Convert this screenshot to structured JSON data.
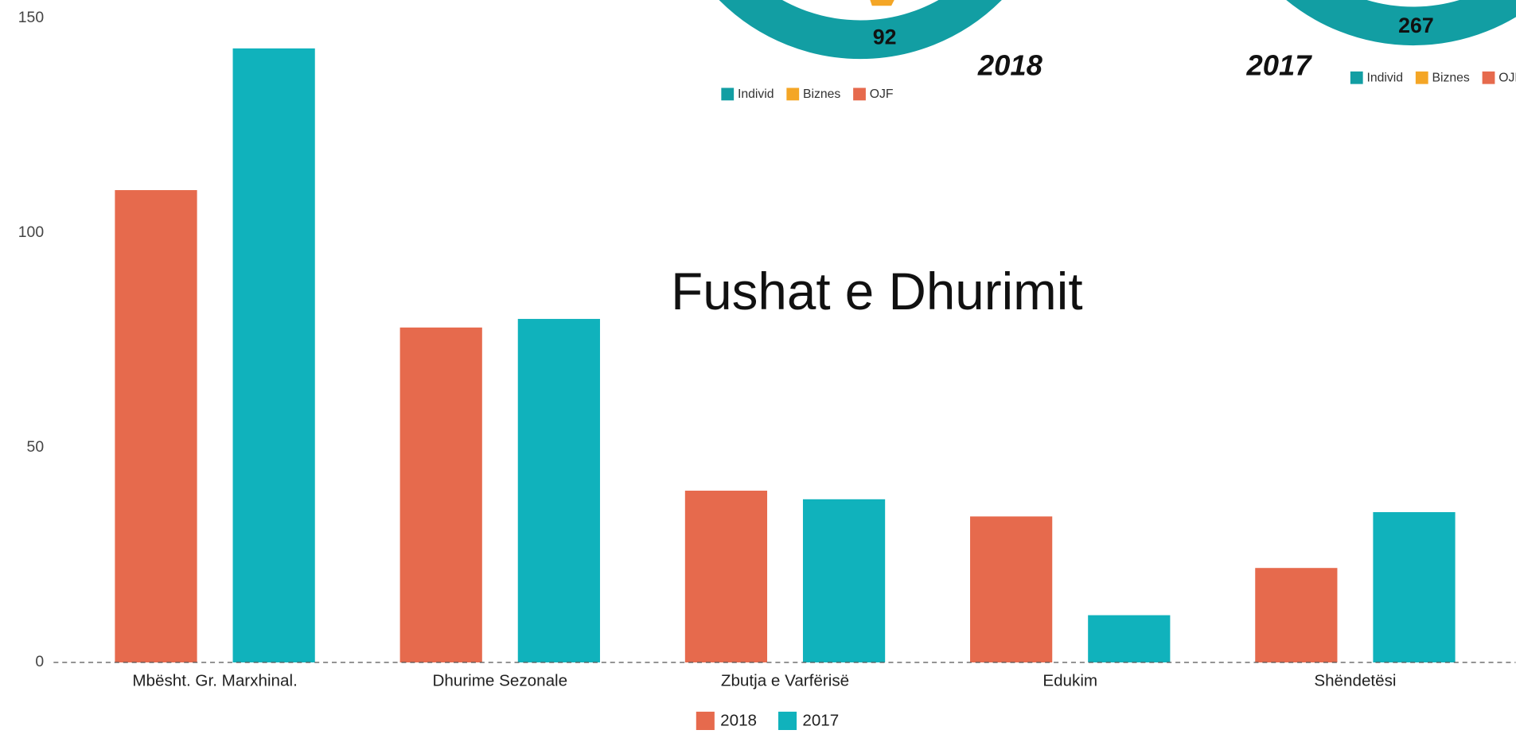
{
  "chart_data": {
    "type": "bar",
    "title": "Fushat e Dhurimit",
    "categories": [
      "Mbësht. Gr. Marxhinal.",
      "Dhurime Sezonale",
      "Zbutja e Varfërisë",
      "Edukim",
      "Shëndetësi"
    ],
    "series": [
      {
        "name": "2018",
        "color": "#e66a4d",
        "values": [
          110,
          78,
          40,
          34,
          22
        ]
      },
      {
        "name": "2017",
        "color": "#10b2bc",
        "values": [
          143,
          80,
          38,
          11,
          35
        ]
      }
    ],
    "ylim": [
      0,
      150
    ],
    "yticks": [
      0,
      50,
      100,
      150
    ],
    "grid": false
  },
  "donut_charts": [
    {
      "center_label": "92",
      "year": "2018",
      "legend": [
        {
          "name": "Individ",
          "color": "#129ea3"
        },
        {
          "name": "Biznes",
          "color": "#f4a626"
        },
        {
          "name": "OJF",
          "color": "#e66a4d"
        }
      ]
    },
    {
      "center_label": "267",
      "year": "2017",
      "legend": [
        {
          "name": "Individ",
          "color": "#129ea3"
        },
        {
          "name": "Biznes",
          "color": "#f4a626"
        },
        {
          "name": "OJF",
          "color": "#e66a4d"
        }
      ]
    }
  ]
}
